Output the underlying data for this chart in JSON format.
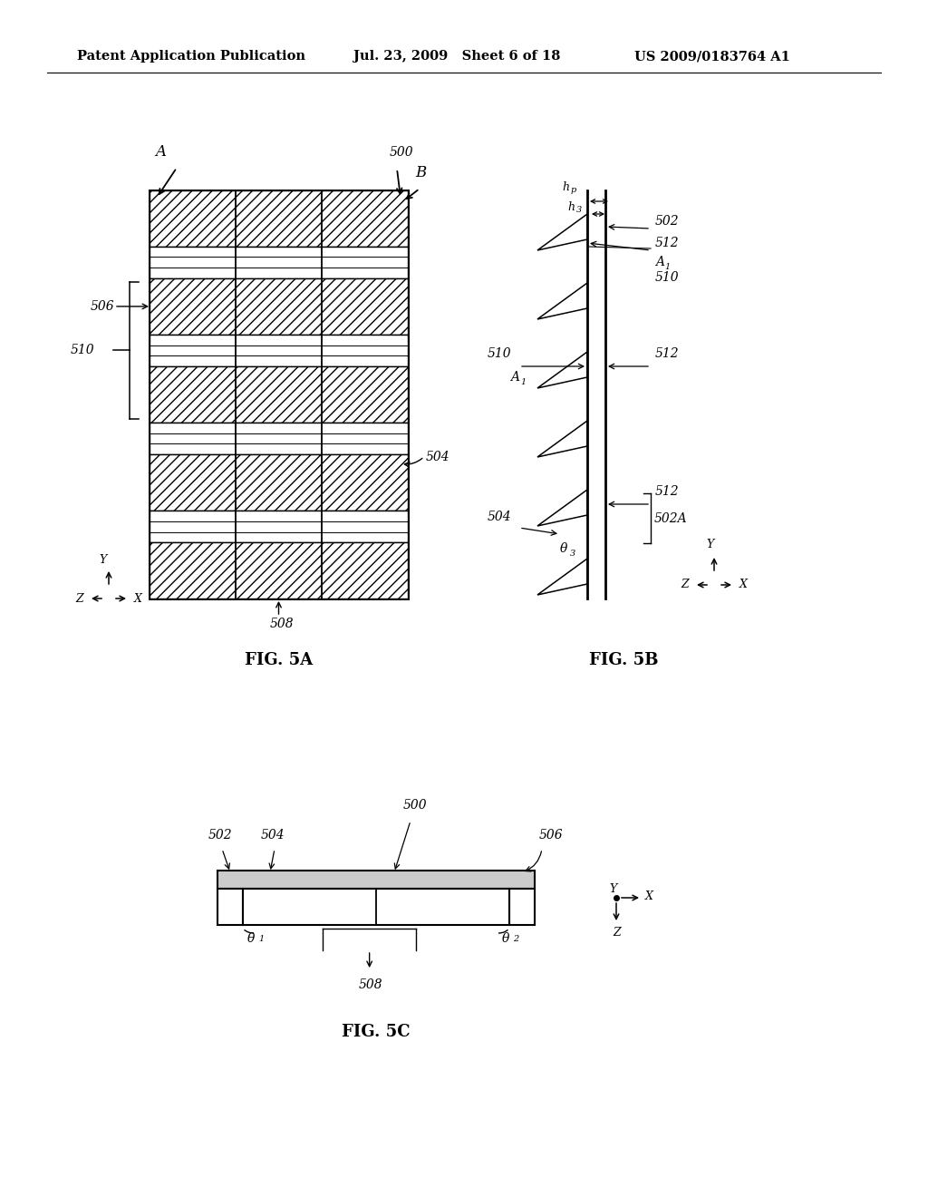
{
  "header_left": "Patent Application Publication",
  "header_mid": "Jul. 23, 2009   Sheet 6 of 18",
  "header_right": "US 2009/0183764 A1",
  "fig5a_label": "FIG. 5A",
  "fig5b_label": "FIG. 5B",
  "fig5c_label": "FIG. 5C",
  "background_color": "#ffffff",
  "line_color": "#000000"
}
